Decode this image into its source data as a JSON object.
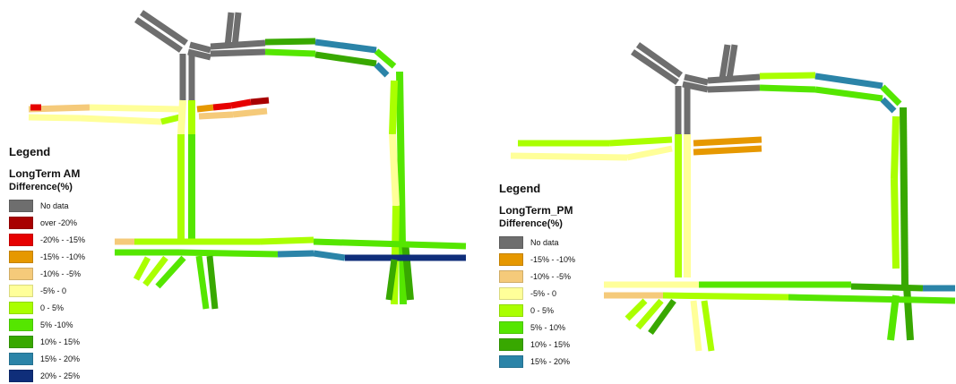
{
  "colors": {
    "nodata": "#6e6e6e",
    "over_m20": "#a80000",
    "m20_m15": "#e60000",
    "m15_m10": "#e69800",
    "m10_m5": "#f5ca7a",
    "m5_0": "#ffff99",
    "p0_5": "#aaff00",
    "p5_10": "#55e600",
    "p10_15": "#38a800",
    "p15_20": "#2b84a8",
    "p20_25": "#0f2e7a"
  },
  "legends": {
    "am": {
      "title": "Legend",
      "layer": "LongTerm AM",
      "field": "Difference(%)",
      "items": [
        {
          "label": "No data",
          "color": "#6e6e6e"
        },
        {
          "label": "over -20%",
          "color": "#a80000"
        },
        {
          "label": "-20% - -15%",
          "color": "#e60000"
        },
        {
          "label": "-15% - -10%",
          "color": "#e69800"
        },
        {
          "label": "-10% - -5%",
          "color": "#f5ca7a"
        },
        {
          "label": "-5% - 0",
          "color": "#ffff99"
        },
        {
          "label": "0 - 5%",
          "color": "#aaff00"
        },
        {
          "label": "5% -10%",
          "color": "#55e600"
        },
        {
          "label": "10% - 15%",
          "color": "#38a800"
        },
        {
          "label": "15% - 20%",
          "color": "#2b84a8"
        },
        {
          "label": "20% - 25%",
          "color": "#0f2e7a"
        }
      ]
    },
    "pm": {
      "title": "Legend",
      "layer": "LongTerm_PM",
      "field": "Difference(%)",
      "items": [
        {
          "label": "No data",
          "color": "#6e6e6e"
        },
        {
          "label": "-15% - -10%",
          "color": "#e69800"
        },
        {
          "label": "-10% - -5%",
          "color": "#f5ca7a"
        },
        {
          "label": "-5% - 0",
          "color": "#ffff99"
        },
        {
          "label": "0 - 5%",
          "color": "#aaff00"
        },
        {
          "label": "5% - 10%",
          "color": "#55e600"
        },
        {
          "label": "10% - 15%",
          "color": "#38a800"
        },
        {
          "label": "15% - 20%",
          "color": "#2b84a8"
        }
      ]
    }
  }
}
